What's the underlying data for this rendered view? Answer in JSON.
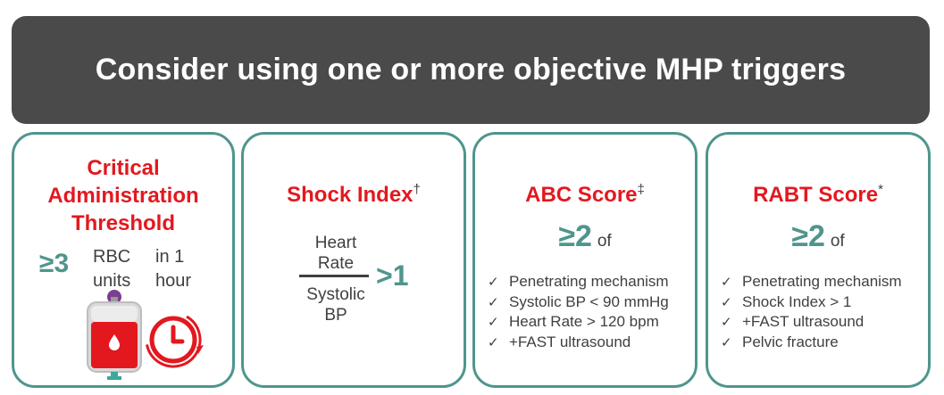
{
  "banner": {
    "title": "Consider using one or more objective MHP triggers"
  },
  "cards": {
    "cat": {
      "title_lines": [
        "Critical",
        "Administration",
        "Threshold"
      ],
      "threshold": "≥3",
      "unit_lines": [
        "RBC",
        "units"
      ],
      "time_lines": [
        "in 1",
        "hour"
      ],
      "icons": [
        "blood-bag-icon",
        "clock-icon"
      ]
    },
    "shock_index": {
      "title": "Shock Index",
      "title_mark": "†",
      "numerator_lines": [
        "Heart",
        "Rate"
      ],
      "denominator_lines": [
        "Systolic",
        "BP"
      ],
      "threshold": ">1"
    },
    "abc": {
      "title": "ABC Score",
      "title_mark": "‡",
      "threshold": "≥2",
      "of_label": "of",
      "items": [
        "Penetrating mechanism",
        "Systolic BP < 90 mmHg",
        "Heart Rate > 120 bpm",
        "+FAST ultrasound"
      ]
    },
    "rabt": {
      "title": "RABT Score",
      "title_mark": "*",
      "threshold": "≥2",
      "of_label": "of",
      "items": [
        "Penetrating mechanism",
        "Shock Index > 1",
        "+FAST ultrasound",
        "Pelvic fracture"
      ]
    }
  },
  "check_glyph": "✓",
  "colors": {
    "accent_red": "#e3181f",
    "accent_teal": "#4f958d",
    "banner_bg": "#4a4a4a",
    "text_gray": "#404040"
  }
}
